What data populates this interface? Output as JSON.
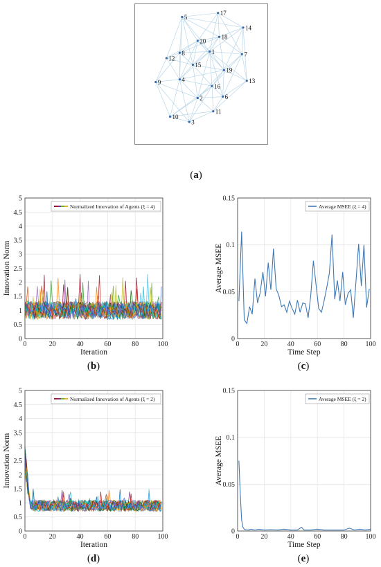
{
  "figure": {
    "captions": [
      "a",
      "b",
      "c",
      "d",
      "e"
    ]
  },
  "colors": {
    "edge": "#b9d6e8",
    "node": "#3b6aa6",
    "mse_line": "#3f78b5",
    "agent_palette": [
      "#1f77b4",
      "#d95319",
      "#edb120",
      "#7e2f8e",
      "#77ac30",
      "#4dbeee",
      "#a2142f",
      "#2ca02c",
      "#17becf",
      "#bcbd22",
      "#e377c2",
      "#8c564b",
      "#ff7f0e",
      "#9467bd",
      "#0072bd",
      "#006400",
      "#ffa500",
      "#00ced1",
      "#b22222",
      "#4169e1"
    ]
  },
  "chart_data": [
    {
      "type": "network",
      "nodes": [
        {
          "id": "1",
          "x": 0.57,
          "y": 0.67
        },
        {
          "id": "2",
          "x": 0.47,
          "y": 0.32
        },
        {
          "id": "3",
          "x": 0.4,
          "y": 0.14
        },
        {
          "id": "4",
          "x": 0.32,
          "y": 0.46
        },
        {
          "id": "5",
          "x": 0.34,
          "y": 0.93
        },
        {
          "id": "6",
          "x": 0.68,
          "y": 0.33
        },
        {
          "id": "7",
          "x": 0.84,
          "y": 0.65
        },
        {
          "id": "8",
          "x": 0.32,
          "y": 0.66
        },
        {
          "id": "9",
          "x": 0.12,
          "y": 0.44
        },
        {
          "id": "10",
          "x": 0.24,
          "y": 0.18
        },
        {
          "id": "11",
          "x": 0.6,
          "y": 0.22
        },
        {
          "id": "12",
          "x": 0.21,
          "y": 0.62
        },
        {
          "id": "13",
          "x": 0.88,
          "y": 0.45
        },
        {
          "id": "14",
          "x": 0.85,
          "y": 0.85
        },
        {
          "id": "15",
          "x": 0.43,
          "y": 0.57
        },
        {
          "id": "16",
          "x": 0.59,
          "y": 0.41
        },
        {
          "id": "17",
          "x": 0.64,
          "y": 0.96
        },
        {
          "id": "18",
          "x": 0.65,
          "y": 0.78
        },
        {
          "id": "19",
          "x": 0.69,
          "y": 0.53
        },
        {
          "id": "20",
          "x": 0.47,
          "y": 0.75
        }
      ],
      "edges": [
        [
          "1",
          "2"
        ],
        [
          "1",
          "4"
        ],
        [
          "1",
          "6"
        ],
        [
          "1",
          "7"
        ],
        [
          "1",
          "8"
        ],
        [
          "1",
          "13"
        ],
        [
          "1",
          "14"
        ],
        [
          "1",
          "15"
        ],
        [
          "1",
          "16"
        ],
        [
          "1",
          "18"
        ],
        [
          "1",
          "19"
        ],
        [
          "1",
          "20"
        ],
        [
          "2",
          "3"
        ],
        [
          "2",
          "4"
        ],
        [
          "2",
          "6"
        ],
        [
          "2",
          "9"
        ],
        [
          "2",
          "10"
        ],
        [
          "2",
          "11"
        ],
        [
          "2",
          "15"
        ],
        [
          "2",
          "16"
        ],
        [
          "2",
          "19"
        ],
        [
          "3",
          "4"
        ],
        [
          "3",
          "10"
        ],
        [
          "3",
          "11"
        ],
        [
          "3",
          "16"
        ],
        [
          "3",
          "9"
        ],
        [
          "4",
          "8"
        ],
        [
          "4",
          "9"
        ],
        [
          "4",
          "10"
        ],
        [
          "4",
          "12"
        ],
        [
          "4",
          "15"
        ],
        [
          "4",
          "20"
        ],
        [
          "4",
          "19"
        ],
        [
          "4",
          "16"
        ],
        [
          "5",
          "8"
        ],
        [
          "5",
          "12"
        ],
        [
          "5",
          "17"
        ],
        [
          "5",
          "18"
        ],
        [
          "5",
          "20"
        ],
        [
          "5",
          "14"
        ],
        [
          "5",
          "15"
        ],
        [
          "5",
          "4"
        ],
        [
          "5",
          "1"
        ],
        [
          "6",
          "7"
        ],
        [
          "6",
          "11"
        ],
        [
          "6",
          "13"
        ],
        [
          "6",
          "16"
        ],
        [
          "6",
          "19"
        ],
        [
          "7",
          "13"
        ],
        [
          "7",
          "14"
        ],
        [
          "7",
          "18"
        ],
        [
          "7",
          "19"
        ],
        [
          "7",
          "16"
        ],
        [
          "8",
          "12"
        ],
        [
          "8",
          "15"
        ],
        [
          "8",
          "20"
        ],
        [
          "8",
          "9"
        ],
        [
          "8",
          "18"
        ],
        [
          "9",
          "10"
        ],
        [
          "9",
          "12"
        ],
        [
          "10",
          "11"
        ],
        [
          "10",
          "16"
        ],
        [
          "11",
          "16"
        ],
        [
          "11",
          "13"
        ],
        [
          "12",
          "15"
        ],
        [
          "12",
          "20"
        ],
        [
          "13",
          "19"
        ],
        [
          "13",
          "14"
        ],
        [
          "14",
          "17"
        ],
        [
          "14",
          "18"
        ],
        [
          "14",
          "19"
        ],
        [
          "15",
          "16"
        ],
        [
          "15",
          "19"
        ],
        [
          "15",
          "20"
        ],
        [
          "15",
          "18"
        ],
        [
          "16",
          "19"
        ],
        [
          "17",
          "18"
        ],
        [
          "17",
          "20"
        ],
        [
          "17",
          "7"
        ],
        [
          "17",
          "1"
        ],
        [
          "18",
          "19"
        ],
        [
          "18",
          "20"
        ],
        [
          "19",
          "20"
        ]
      ]
    },
    {
      "type": "line",
      "legend": "Normalized Innovation of Agents (ξ = 4)",
      "xlabel": "Iteration",
      "ylabel": "Innovation Norm",
      "xlim": [
        0,
        100
      ],
      "ylim": [
        0,
        5
      ],
      "xticks": [
        0,
        20,
        40,
        60,
        80,
        100
      ],
      "yticks": [
        0,
        0.5,
        1,
        1.5,
        2,
        2.5,
        3,
        3.5,
        4,
        4.5,
        5
      ],
      "grid": true,
      "legend_position": "top-right",
      "series_count": 20,
      "mean": 1.0,
      "spread": 0.32,
      "peak": 2.3,
      "seed": 11
    },
    {
      "type": "line",
      "legend": "Average MSEE (ξ = 4)",
      "xlabel": "Time Step",
      "ylabel": "Average MSEE",
      "xlim": [
        0,
        100
      ],
      "ylim": [
        0,
        0.15
      ],
      "xticks": [
        0,
        20,
        40,
        60,
        80,
        100
      ],
      "yticks": [
        0,
        0.05,
        0.1,
        0.15
      ],
      "grid": true,
      "legend_position": "top-right",
      "x": [
        1,
        3,
        5,
        7,
        9,
        11,
        13,
        15,
        17,
        19,
        21,
        23,
        25,
        27,
        29,
        31,
        33,
        35,
        37,
        39,
        41,
        43,
        45,
        47,
        49,
        51,
        53,
        55,
        57,
        59,
        61,
        63,
        65,
        67,
        69,
        71,
        73,
        75,
        77,
        79,
        81,
        83,
        85,
        87,
        89,
        91,
        93,
        95,
        97,
        99
      ],
      "y": [
        0.04,
        0.114,
        0.02,
        0.016,
        0.034,
        0.026,
        0.064,
        0.038,
        0.049,
        0.071,
        0.045,
        0.081,
        0.052,
        0.096,
        0.053,
        0.046,
        0.034,
        0.036,
        0.028,
        0.04,
        0.032,
        0.026,
        0.041,
        0.028,
        0.038,
        0.037,
        0.022,
        0.046,
        0.083,
        0.057,
        0.032,
        0.028,
        0.04,
        0.054,
        0.07,
        0.111,
        0.042,
        0.062,
        0.04,
        0.071,
        0.036,
        0.048,
        0.052,
        0.022,
        0.061,
        0.101,
        0.056,
        0.1,
        0.033,
        0.053
      ]
    },
    {
      "type": "line",
      "legend": "Normalized Innovation of Agents (ξ = 2)",
      "xlabel": "Iteration",
      "ylabel": "Innovation Norm",
      "xlim": [
        0,
        100
      ],
      "ylim": [
        0,
        5
      ],
      "xticks": [
        0,
        20,
        40,
        60,
        80,
        100
      ],
      "yticks": [
        0,
        0.5,
        1,
        1.5,
        2,
        2.5,
        3,
        3.5,
        4,
        4.5,
        5
      ],
      "grid": true,
      "legend_position": "top-right",
      "series_count": 20,
      "mean": 0.9,
      "spread": 0.2,
      "peak": 1.5,
      "initial_peak": 3.1,
      "seed": 29
    },
    {
      "type": "line",
      "legend": "Average MSEE (ξ = 2)",
      "xlabel": "Time Step",
      "ylabel": "Average MSEE",
      "xlim": [
        0,
        100
      ],
      "ylim": [
        0,
        0.15
      ],
      "xticks": [
        0,
        20,
        40,
        60,
        80,
        100
      ],
      "yticks": [
        0,
        0.05,
        0.1,
        0.15
      ],
      "grid": true,
      "legend_position": "top-right",
      "x": [
        1,
        2,
        3,
        4,
        5,
        6,
        8,
        10,
        13,
        16,
        20,
        25,
        30,
        35,
        40,
        45,
        48,
        50,
        55,
        60,
        65,
        70,
        75,
        80,
        84,
        88,
        92,
        96,
        100
      ],
      "y": [
        0.075,
        0.04,
        0.012,
        0.004,
        0.002,
        0.0015,
        0.001,
        0.002,
        0.001,
        0.002,
        0.001,
        0.0015,
        0.001,
        0.002,
        0.001,
        0.001,
        0.004,
        0.001,
        0.001,
        0.002,
        0.001,
        0.001,
        0.001,
        0.001,
        0.003,
        0.001,
        0.002,
        0.001,
        0.002
      ]
    }
  ]
}
